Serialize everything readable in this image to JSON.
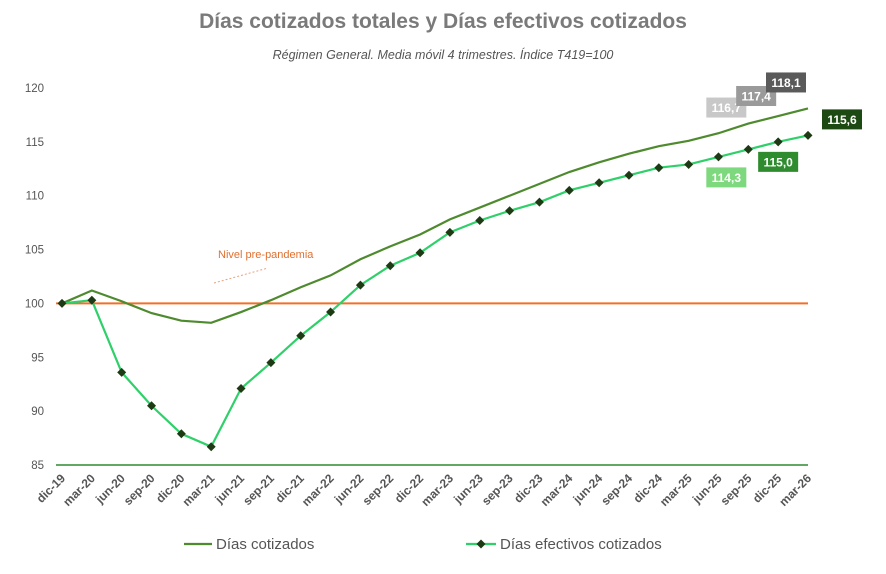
{
  "chart_data": {
    "type": "line",
    "title": "Días cotizados totales y Días efectivos cotizados",
    "subtitle": "Régimen General. Media móvil 4 trimestres. Índice T419=100",
    "categories": [
      "dic-19",
      "mar-20",
      "jun-20",
      "sep-20",
      "dic-20",
      "mar-21",
      "jun-21",
      "sep-21",
      "dic-21",
      "mar-22",
      "jun-22",
      "sep-22",
      "dic-22",
      "mar-23",
      "jun-23",
      "sep-23",
      "dic-23",
      "mar-24",
      "jun-24",
      "sep-24",
      "dic-24",
      "mar-25",
      "jun-25",
      "sep-25",
      "dic-25",
      "mar-26"
    ],
    "ylim": [
      85,
      120
    ],
    "yticks": [
      85,
      90,
      95,
      100,
      105,
      110,
      115,
      120
    ],
    "reference_line": {
      "value": 100,
      "label": "Nivel pre-pandemia",
      "color": "#f07028"
    },
    "series": [
      {
        "name": "Días cotizados",
        "color": "#4e8a2e",
        "marker": "none",
        "values": [
          100.0,
          101.2,
          100.2,
          99.1,
          98.4,
          98.2,
          99.2,
          100.3,
          101.5,
          102.6,
          104.1,
          105.3,
          106.4,
          107.8,
          108.9,
          110.0,
          111.1,
          112.2,
          113.1,
          113.9,
          114.6,
          115.1,
          115.8,
          116.7,
          117.4,
          118.1
        ]
      },
      {
        "name": "Días efectivos cotizados",
        "color": "#2fd06a",
        "marker": "diamond",
        "values": [
          100.0,
          100.3,
          93.6,
          90.5,
          87.9,
          86.7,
          92.1,
          94.5,
          97.0,
          99.2,
          101.7,
          103.5,
          104.7,
          106.6,
          107.7,
          108.6,
          109.4,
          110.5,
          111.2,
          111.9,
          112.6,
          112.9,
          113.6,
          114.3,
          115.0,
          115.6
        ]
      }
    ],
    "data_labels": [
      {
        "text": "116,7",
        "series": 0,
        "index": 23,
        "bg": "#c8c8c8"
      },
      {
        "text": "117,4",
        "series": 0,
        "index": 24,
        "bg": "#9a9a9a"
      },
      {
        "text": "118,1",
        "series": 0,
        "index": 25,
        "bg": "#5a5a5a"
      },
      {
        "text": "114,3",
        "series": 1,
        "index": 23,
        "bg": "#7ed87e"
      },
      {
        "text": "115,0",
        "series": 1,
        "index": 24,
        "bg": "#2e8b2e"
      },
      {
        "text": "115,6",
        "series": 1,
        "index": 25,
        "bg": "#1c4a12"
      }
    ],
    "legend_position": "bottom",
    "grid": false
  }
}
